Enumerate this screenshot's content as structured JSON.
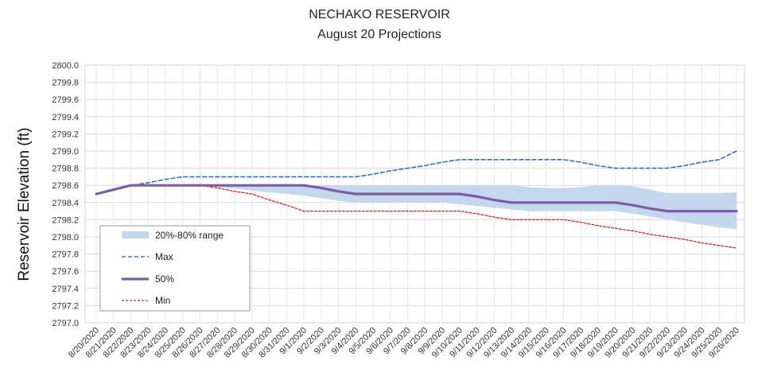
{
  "chart_data": {
    "type": "line",
    "title": "NECHAKO RESERVOIR",
    "subtitle": "August 20 Projections",
    "ylabel": "Reservoir Elevation (ft)",
    "xlabel": "",
    "ylim": [
      2797.0,
      2800.0
    ],
    "y_tick_step": 0.2,
    "grid": true,
    "legend_position": "bottom-left",
    "categories": [
      "8/20/2020",
      "8/21/2020",
      "8/22/2020",
      "8/23/2020",
      "8/24/2020",
      "8/25/2020",
      "8/26/2020",
      "8/27/2020",
      "8/28/2020",
      "8/29/2020",
      "8/30/2020",
      "8/31/2020",
      "9/1/2020",
      "9/2/2020",
      "9/3/2020",
      "9/4/2020",
      "9/5/2020",
      "9/6/2020",
      "9/7/2020",
      "9/8/2020",
      "9/9/2020",
      "9/10/2020",
      "9/11/2020",
      "9/12/2020",
      "9/13/2020",
      "9/14/2020",
      "9/15/2020",
      "9/16/2020",
      "9/17/2020",
      "9/18/2020",
      "9/19/2020",
      "9/20/2020",
      "9/21/2020",
      "9/22/2020",
      "9/23/2020",
      "9/24/2020",
      "9/25/2020",
      "9/26/2020"
    ],
    "band": {
      "name": "20%-80% range",
      "color": "#c5d6ef",
      "lower": [
        2798.5,
        2798.55,
        2798.6,
        2798.6,
        2798.6,
        2798.6,
        2798.6,
        2798.58,
        2798.56,
        2798.54,
        2798.52,
        2798.5,
        2798.48,
        2798.45,
        2798.42,
        2798.4,
        2798.4,
        2798.4,
        2798.4,
        2798.4,
        2798.4,
        2798.38,
        2798.36,
        2798.34,
        2798.32,
        2798.3,
        2798.3,
        2798.3,
        2798.3,
        2798.3,
        2798.3,
        2798.27,
        2798.24,
        2798.2,
        2798.17,
        2798.14,
        2798.11,
        2798.09
      ],
      "upper": [
        2798.5,
        2798.55,
        2798.6,
        2798.6,
        2798.6,
        2798.6,
        2798.6,
        2798.6,
        2798.6,
        2798.6,
        2798.6,
        2798.6,
        2798.6,
        2798.6,
        2798.6,
        2798.6,
        2798.6,
        2798.6,
        2798.6,
        2798.6,
        2798.6,
        2798.6,
        2798.6,
        2798.6,
        2798.6,
        2798.58,
        2798.57,
        2798.57,
        2798.58,
        2798.6,
        2798.6,
        2798.59,
        2798.55,
        2798.51,
        2798.51,
        2798.51,
        2798.51,
        2798.52
      ]
    },
    "series": [
      {
        "name": "Max",
        "color": "#2e75b6",
        "style": "dashed",
        "width": 1.6,
        "values": [
          2798.5,
          2798.55,
          2798.6,
          2798.63,
          2798.67,
          2798.7,
          2798.7,
          2798.7,
          2798.7,
          2798.7,
          2798.7,
          2798.7,
          2798.7,
          2798.7,
          2798.7,
          2798.7,
          2798.73,
          2798.77,
          2798.8,
          2798.83,
          2798.87,
          2798.9,
          2798.9,
          2798.9,
          2798.9,
          2798.9,
          2798.9,
          2798.9,
          2798.87,
          2798.83,
          2798.8,
          2798.8,
          2798.8,
          2798.8,
          2798.83,
          2798.87,
          2798.9,
          2799.0
        ]
      },
      {
        "name": "50%",
        "color": "#7b5ea7",
        "style": "solid",
        "width": 3.2,
        "values": [
          2798.5,
          2798.55,
          2798.6,
          2798.6,
          2798.6,
          2798.6,
          2798.6,
          2798.6,
          2798.6,
          2798.6,
          2798.6,
          2798.6,
          2798.6,
          2798.57,
          2798.53,
          2798.5,
          2798.5,
          2798.5,
          2798.5,
          2798.5,
          2798.5,
          2798.5,
          2798.47,
          2798.43,
          2798.4,
          2798.4,
          2798.4,
          2798.4,
          2798.4,
          2798.4,
          2798.4,
          2798.37,
          2798.33,
          2798.3,
          2798.3,
          2798.3,
          2798.3,
          2798.3
        ]
      },
      {
        "name": "Min",
        "color": "#e02020",
        "style": "dotted",
        "width": 1.3,
        "values": [
          2798.5,
          2798.55,
          2798.6,
          2798.6,
          2798.6,
          2798.6,
          2798.6,
          2798.57,
          2798.53,
          2798.5,
          2798.43,
          2798.37,
          2798.3,
          2798.3,
          2798.3,
          2798.3,
          2798.3,
          2798.3,
          2798.3,
          2798.3,
          2798.3,
          2798.3,
          2798.27,
          2798.23,
          2798.2,
          2798.2,
          2798.2,
          2798.2,
          2798.17,
          2798.13,
          2798.1,
          2798.07,
          2798.03,
          2798.0,
          2797.97,
          2797.93,
          2797.9,
          2797.87
        ]
      }
    ],
    "legend_order": [
      "20%-80% range",
      "Max",
      "50%",
      "Min"
    ]
  }
}
